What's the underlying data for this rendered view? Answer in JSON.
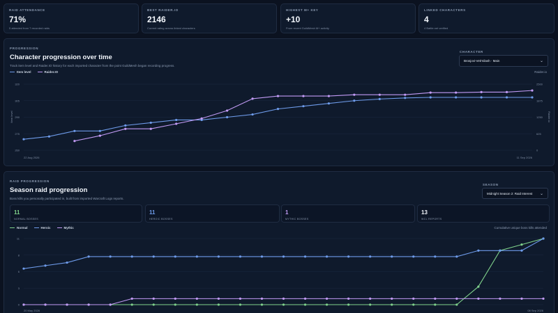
{
  "stats": [
    {
      "label": "RAID ATTENDANCE",
      "value": "71%",
      "sub": "5 attended from 7 recorded raids"
    },
    {
      "label": "BEST RAIDER.IO",
      "value": "2146",
      "sub": "Current rating across linked characters"
    },
    {
      "label": "HIGHEST M+ KEY",
      "value": "+10",
      "sub": "From recent GuildMesh M+ activity"
    },
    {
      "label": "LINKED CHARACTERS",
      "value": "4",
      "sub": "4 Battle.net verified"
    }
  ],
  "progression": {
    "label": "PROGRESSION",
    "title": "Character progression over time",
    "desc": "Track item level and Raider.IO history for each imported character from the point GuildMesh began recording progress.",
    "select_label": "CHARACTER",
    "select_value": "Brosjovi-Vek'nilash · Main",
    "legend": [
      {
        "name": "Item level",
        "color": "#6e9bea"
      },
      {
        "name": "Raider.IO",
        "color": "#c29bf5"
      }
    ],
    "right_axis_title": "Raider.io",
    "left_axis_title": "Item level",
    "right_axis_rotated": "Raider.io"
  },
  "raid": {
    "label": "RAID PROGRESSION",
    "title": "Season raid progression",
    "desc": "Boss kills you personally participated in, built from imported Warcraft Logs reports.",
    "select_label": "SEASON",
    "select_value": "Midnight Season 2: Raid Interest",
    "summary": [
      {
        "value": "11",
        "caption": "NORMAL BOSSES",
        "color": "#7fd18b"
      },
      {
        "value": "11",
        "caption": "HEROIC BOSSES",
        "color": "#6e9bea"
      },
      {
        "value": "1",
        "caption": "MYTHIC BOSSES",
        "color": "#c29bf5"
      },
      {
        "value": "13",
        "caption": "WCL REPORTS",
        "color": "#f2f6fc"
      }
    ],
    "legend": [
      {
        "name": "Normal",
        "color": "#7fd18b"
      },
      {
        "name": "Heroic",
        "color": "#6e9bea"
      },
      {
        "name": "Mythic",
        "color": "#c29bf5"
      }
    ],
    "note": "Cumulative unique boss kills attended"
  },
  "chart_data": [
    {
      "type": "line",
      "x_start_label": "22 Aug 2026",
      "x_end_label": "11 Sep 2026",
      "left_ticks": [
        "320",
        "305",
        "290",
        "275",
        "260"
      ],
      "right_ticks": [
        "2500",
        "1875",
        "1250",
        "625",
        "0"
      ],
      "ylim_left": [
        260,
        320
      ],
      "ylim_right": [
        0,
        2500
      ],
      "x": [
        0,
        1,
        2,
        3,
        4,
        5,
        6,
        7,
        8,
        9,
        10,
        11,
        12,
        13,
        14,
        15,
        16,
        17,
        18,
        19,
        20
      ],
      "series": [
        {
          "name": "Item level",
          "axis": "left",
          "color": "#6e9bea",
          "values": [
            270,
            272.5,
            277.5,
            277.5,
            282.5,
            285,
            287.5,
            287.5,
            290,
            292.5,
            297.5,
            300,
            302.5,
            305,
            306.5,
            307.5,
            308,
            308,
            308,
            308,
            308
          ]
        },
        {
          "name": "Raider.IO",
          "axis": "right",
          "color": "#c29bf5",
          "values": [
            null,
            null,
            350,
            550,
            810,
            810,
            1000,
            1200,
            1500,
            1950,
            2050,
            2050,
            2050,
            2100,
            2100,
            2100,
            2180,
            2180,
            2200,
            2200,
            2260
          ]
        }
      ]
    },
    {
      "type": "line",
      "x_start_label": "20 May 2026",
      "x_end_label": "08 Sep 2026",
      "y_ticks": [
        "11",
        "8",
        "6",
        "3",
        "0"
      ],
      "ylim": [
        0,
        11
      ],
      "series": [
        {
          "name": "Normal",
          "color": "#7fd18b",
          "values": [
            0,
            0,
            0,
            0,
            0,
            0,
            0,
            0,
            0,
            0,
            0,
            0,
            0,
            0,
            0,
            0,
            0,
            0,
            0,
            0,
            0,
            3,
            9,
            10,
            11
          ]
        },
        {
          "name": "Heroic",
          "color": "#6e9bea",
          "values": [
            6,
            6.5,
            7,
            8,
            8,
            8,
            8,
            8,
            8,
            8,
            8,
            8,
            8,
            8,
            8,
            8,
            8,
            8,
            8,
            8,
            8,
            9,
            9,
            9,
            11
          ]
        },
        {
          "name": "Mythic",
          "color": "#c29bf5",
          "values": [
            0,
            0,
            0,
            0,
            0,
            1,
            1,
            1,
            1,
            1,
            1,
            1,
            1,
            1,
            1,
            1,
            1,
            1,
            1,
            1,
            1,
            1,
            1,
            1,
            1
          ]
        }
      ]
    }
  ]
}
